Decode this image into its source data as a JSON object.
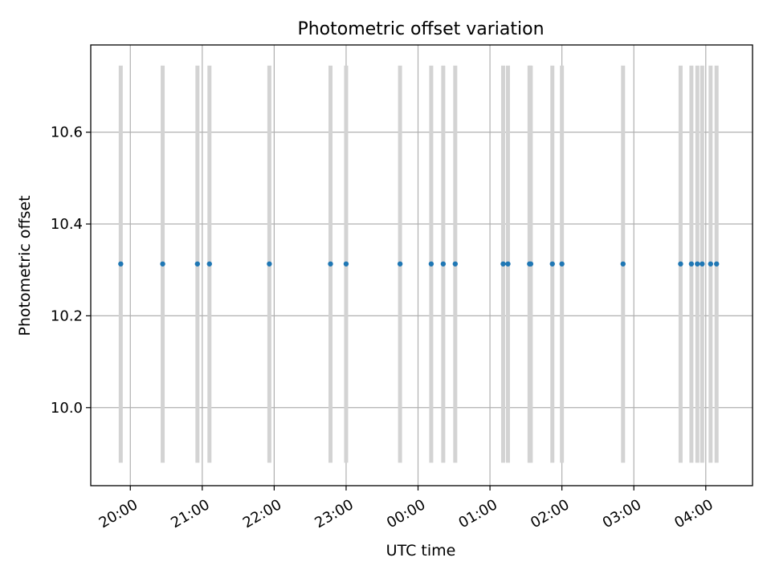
{
  "chart_data": {
    "type": "scatter",
    "title": "Photometric offset variation",
    "xlabel": "UTC time",
    "ylabel": "Photometric offset",
    "x_unit": "hours UTC (values past 24 are after midnight)",
    "xlim": [
      19.45,
      28.65
    ],
    "ylim": [
      9.83,
      10.79
    ],
    "x_ticks": [
      {
        "value": 20,
        "label": "20:00"
      },
      {
        "value": 21,
        "label": "21:00"
      },
      {
        "value": 22,
        "label": "22:00"
      },
      {
        "value": 23,
        "label": "23:00"
      },
      {
        "value": 24,
        "label": "00:00"
      },
      {
        "value": 25,
        "label": "01:00"
      },
      {
        "value": 26,
        "label": "02:00"
      },
      {
        "value": 27,
        "label": "03:00"
      },
      {
        "value": 28,
        "label": "04:00"
      }
    ],
    "y_ticks": [
      {
        "value": 10.0,
        "label": "10.0"
      },
      {
        "value": 10.2,
        "label": "10.2"
      },
      {
        "value": 10.4,
        "label": "10.4"
      },
      {
        "value": 10.6,
        "label": "10.6"
      }
    ],
    "grid": true,
    "points_color": "#1f77b4",
    "band_color": "#d3d3d3",
    "band_range": [
      9.88,
      10.745
    ],
    "x": [
      19.867,
      20.45,
      20.933,
      21.1,
      21.933,
      22.783,
      23.0,
      23.75,
      24.183,
      24.35,
      24.517,
      25.183,
      25.25,
      25.55,
      25.567,
      25.867,
      26.0,
      26.85,
      27.65,
      27.8,
      27.883,
      27.95,
      28.067,
      28.15
    ],
    "y": [
      10.313,
      10.313,
      10.313,
      10.313,
      10.313,
      10.313,
      10.313,
      10.313,
      10.313,
      10.313,
      10.313,
      10.313,
      10.313,
      10.313,
      10.313,
      10.313,
      10.313,
      10.313,
      10.313,
      10.313,
      10.313,
      10.313,
      10.313,
      10.313
    ]
  }
}
